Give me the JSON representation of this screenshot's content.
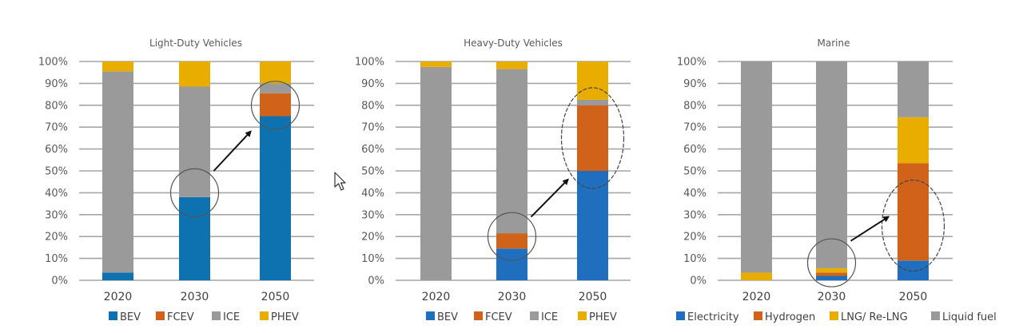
{
  "chart_data": [
    {
      "type": "bar",
      "stacked": true,
      "title": "Light-Duty Vehicles",
      "categories": [
        "2020",
        "2030",
        "2050"
      ],
      "yticks": [
        "0%",
        "10%",
        "20%",
        "30%",
        "40%",
        "50%",
        "60%",
        "70%",
        "80%",
        "90%",
        "100%"
      ],
      "ylim": [
        0,
        100
      ],
      "grid": true,
      "legend_position": "bottom",
      "series": [
        {
          "name": "BEV",
          "color": "#0f72b0",
          "values": [
            3.5,
            38,
            75
          ]
        },
        {
          "name": "FCEV",
          "color": "#d0621a",
          "values": [
            0,
            0,
            10.5
          ]
        },
        {
          "name": "ICE",
          "color": "#9a9a9a",
          "values": [
            92,
            50.5,
            4.5
          ]
        },
        {
          "name": "PHEV",
          "color": "#e9ad00",
          "values": [
            4.5,
            11.5,
            10
          ]
        }
      ],
      "annotations": [
        {
          "shape": "circle",
          "category": "2030",
          "value": 40
        },
        {
          "shape": "circle",
          "category": "2050",
          "value": 80
        },
        {
          "shape": "arrow",
          "from": {
            "category": "2030",
            "value": 50
          },
          "to": {
            "category": "2050",
            "value": 68
          }
        }
      ]
    },
    {
      "type": "bar",
      "stacked": true,
      "title": "Heavy-Duty Vehicles",
      "categories": [
        "2020",
        "2030",
        "2050"
      ],
      "yticks": [
        "0%",
        "10%",
        "20%",
        "30%",
        "40%",
        "50%",
        "60%",
        "70%",
        "80%",
        "90%",
        "100%"
      ],
      "ylim": [
        0,
        100
      ],
      "grid": true,
      "legend_position": "bottom",
      "series": [
        {
          "name": "BEV",
          "color": "#1f6fbe",
          "values": [
            0,
            14.5,
            50
          ]
        },
        {
          "name": "FCEV",
          "color": "#d0621a",
          "values": [
            0,
            7,
            30
          ]
        },
        {
          "name": "ICE",
          "color": "#9a9a9a",
          "values": [
            97.5,
            75,
            2.5
          ]
        },
        {
          "name": "PHEV",
          "color": "#e9ad00",
          "values": [
            2.5,
            3.5,
            17.5
          ]
        }
      ],
      "annotations": [
        {
          "shape": "circle",
          "category": "2030",
          "value": 20
        },
        {
          "shape": "ellipse",
          "category": "2050",
          "value": 65
        },
        {
          "shape": "arrow",
          "from": {
            "category": "2030",
            "value": 29
          },
          "to": {
            "category": "2050",
            "value": 46
          }
        }
      ]
    },
    {
      "type": "bar",
      "stacked": true,
      "title": "Marine",
      "categories": [
        "2020",
        "2030",
        "2050"
      ],
      "yticks": [
        "0%",
        "10%",
        "20%",
        "30%",
        "40%",
        "50%",
        "60%",
        "70%",
        "80%",
        "90%",
        "100%"
      ],
      "ylim": [
        0,
        100
      ],
      "grid": true,
      "legend_position": "bottom",
      "series": [
        {
          "name": "Electricity",
          "color": "#1f6fbe",
          "values": [
            0,
            2,
            9
          ]
        },
        {
          "name": "Hydrogen",
          "color": "#d0621a",
          "values": [
            0,
            1.5,
            44.5
          ]
        },
        {
          "name": "LNG/ Re-LNG",
          "color": "#e9ad00",
          "values": [
            3.5,
            2,
            21
          ]
        },
        {
          "name": "Liquid fuel",
          "color": "#9a9a9a",
          "values": [
            96.5,
            94.5,
            25.5
          ]
        }
      ],
      "annotations": [
        {
          "shape": "circle",
          "category": "2030",
          "value": 8
        },
        {
          "shape": "ellipse",
          "category": "2050",
          "value": 25
        },
        {
          "shape": "arrow",
          "from": {
            "category": "2030",
            "value": 18
          },
          "to": {
            "category": "2050",
            "value": 29
          }
        }
      ]
    }
  ],
  "cursor": {
    "icon": "mouse-pointer-icon"
  }
}
